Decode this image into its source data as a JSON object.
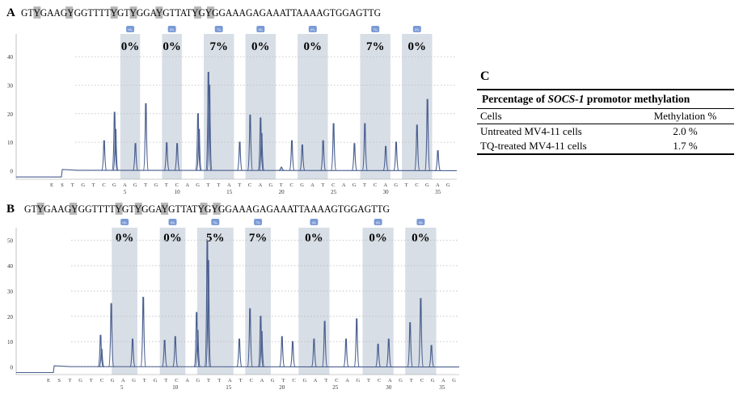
{
  "chart_data": [
    {
      "panel": "A",
      "type": "pyrogram",
      "sequence": "GTYGAAGYGGTTTTYGTYGGAYGTTATYGYGGAAAGAGAAATTAAAAGTGGAGTTG",
      "ylim": [
        -3,
        48
      ],
      "yticks": [
        0,
        10,
        20,
        30,
        40
      ],
      "xticks": [
        5,
        10,
        15,
        20,
        25,
        30,
        35
      ],
      "dispensation": [
        "E",
        "S",
        "T",
        "G",
        "T",
        "C",
        "G",
        "A",
        "G",
        "T",
        "G",
        "T",
        "C",
        "A",
        "G",
        "T",
        "T",
        "A",
        "T",
        "C",
        "A",
        "G",
        "T",
        "C",
        "G",
        "A",
        "T",
        "C",
        "A",
        "G",
        "T",
        "C",
        "A",
        "G",
        "T",
        "C",
        "G",
        "A",
        "G"
      ],
      "cpg_sites": [
        {
          "badge": "0%",
          "percent": "0%",
          "from": 5,
          "to": 6
        },
        {
          "badge": "0%",
          "percent": "0%",
          "from": 9,
          "to": 10
        },
        {
          "badge": "7%",
          "percent": "7%",
          "from": 13,
          "to": 15
        },
        {
          "badge": "0%",
          "percent": "0%",
          "from": 17,
          "to": 19
        },
        {
          "badge": "0%",
          "percent": "0%",
          "from": 22,
          "to": 24
        },
        {
          "badge": "7%",
          "percent": "7%",
          "from": 28,
          "to": 30
        },
        {
          "badge": "0%",
          "percent": "0%",
          "from": 32,
          "to": 34
        }
      ],
      "peaks": [
        {
          "x": 3,
          "y": 10.5
        },
        {
          "x": 4,
          "y": 20.5
        },
        {
          "x": 4.1,
          "y": 14.5
        },
        {
          "x": 6,
          "y": 9.5
        },
        {
          "x": 7,
          "y": 23.5
        },
        {
          "x": 9,
          "y": 9.8
        },
        {
          "x": 10,
          "y": 9.5
        },
        {
          "x": 12,
          "y": 20
        },
        {
          "x": 12.1,
          "y": 14.5
        },
        {
          "x": 13,
          "y": 34.5
        },
        {
          "x": 13.1,
          "y": 30
        },
        {
          "x": 16,
          "y": 10
        },
        {
          "x": 17,
          "y": 19.5
        },
        {
          "x": 18,
          "y": 18.5
        },
        {
          "x": 18.1,
          "y": 13
        },
        {
          "x": 20,
          "y": 1.2
        },
        {
          "x": 21,
          "y": 10.5
        },
        {
          "x": 22,
          "y": 9
        },
        {
          "x": 24,
          "y": 10.5
        },
        {
          "x": 25,
          "y": 16.5
        },
        {
          "x": 27,
          "y": 9.5
        },
        {
          "x": 28,
          "y": 16.5
        },
        {
          "x": 30,
          "y": 8.5
        },
        {
          "x": 31,
          "y": 10
        },
        {
          "x": 33,
          "y": 16
        },
        {
          "x": 34,
          "y": 25
        },
        {
          "x": 35,
          "y": 7
        }
      ]
    },
    {
      "panel": "B",
      "type": "pyrogram",
      "sequence": "GTYGAAGYGGTTTTYGTYGGAYGTTATYGYGGAAAGAGAAATTAAAAGTGGAGTTG",
      "ylim": [
        -3,
        55
      ],
      "yticks": [
        0,
        10,
        20,
        30,
        40,
        50
      ],
      "xticks": [
        5,
        10,
        15,
        20,
        25,
        30,
        35
      ],
      "dispensation": [
        "E",
        "S",
        "T",
        "G",
        "T",
        "C",
        "G",
        "A",
        "G",
        "T",
        "G",
        "T",
        "C",
        "A",
        "G",
        "T",
        "T",
        "A",
        "T",
        "C",
        "A",
        "G",
        "T",
        "C",
        "G",
        "A",
        "T",
        "C",
        "A",
        "G",
        "T",
        "C",
        "A",
        "G",
        "T",
        "C",
        "G",
        "A",
        "G"
      ],
      "cpg_sites": [
        {
          "badge": "0%",
          "percent": "0%",
          "from": 4.5,
          "to": 6
        },
        {
          "badge": "0%",
          "percent": "0%",
          "from": 9,
          "to": 10.5
        },
        {
          "badge": "5%",
          "percent": "5%",
          "from": 12.5,
          "to": 15
        },
        {
          "badge": "7%",
          "percent": "7%",
          "from": 17,
          "to": 18.5
        },
        {
          "badge": "0%",
          "percent": "0%",
          "from": 22,
          "to": 24
        },
        {
          "badge": "0%",
          "percent": "0%",
          "from": 28,
          "to": 30
        },
        {
          "badge": "0%",
          "percent": "0%",
          "from": 32,
          "to": 34
        }
      ],
      "peaks": [
        {
          "x": 3,
          "y": 12.5
        },
        {
          "x": 3.1,
          "y": 7
        },
        {
          "x": 4,
          "y": 25
        },
        {
          "x": 6,
          "y": 11
        },
        {
          "x": 7,
          "y": 27.5
        },
        {
          "x": 9,
          "y": 10.5
        },
        {
          "x": 10,
          "y": 12
        },
        {
          "x": 12,
          "y": 21.5
        },
        {
          "x": 12.1,
          "y": 14.5
        },
        {
          "x": 13,
          "y": 49.5
        },
        {
          "x": 13.1,
          "y": 42
        },
        {
          "x": 16,
          "y": 11
        },
        {
          "x": 17,
          "y": 23
        },
        {
          "x": 18,
          "y": 20
        },
        {
          "x": 18.1,
          "y": 14
        },
        {
          "x": 20,
          "y": 12
        },
        {
          "x": 21,
          "y": 10
        },
        {
          "x": 23,
          "y": 11
        },
        {
          "x": 24,
          "y": 18
        },
        {
          "x": 26,
          "y": 11
        },
        {
          "x": 27,
          "y": 19
        },
        {
          "x": 29,
          "y": 9
        },
        {
          "x": 30,
          "y": 11
        },
        {
          "x": 32,
          "y": 17.5
        },
        {
          "x": 33,
          "y": 27
        },
        {
          "x": 34,
          "y": 8.5
        }
      ]
    }
  ],
  "panel_a": {
    "letter": "A",
    "sequence": "GTYGAAGYGGTTTTYGTYGGAYGTTATYGYGGAAAGAGAAATTAAAAGTGGAGTTG"
  },
  "panel_b": {
    "letter": "B",
    "sequence": "GTYGAAGYGGTTTTYGTYGGAYGTTATYGYGGAAAGAGAAATTAAAAGTGGAGTTG"
  },
  "table": {
    "letter": "C",
    "title_prefix": "Percentage of ",
    "title_gene": "SOCS-1",
    "title_suffix": " promotor methylation",
    "col_cells": "Cells",
    "col_methylation": "Methylation %",
    "rows": [
      {
        "cells": "Untreated MV4-11 cells",
        "value": "2.0 %"
      },
      {
        "cells": "TQ-treated MV4-11 cells",
        "value": "1.7 %"
      }
    ]
  },
  "colors": {
    "trace": "#4a5f8f",
    "highlight": "#d8dee6",
    "gray_box": "#b8b8b8",
    "badge": "#7a9ad6",
    "grid": "#bdbdbd"
  }
}
